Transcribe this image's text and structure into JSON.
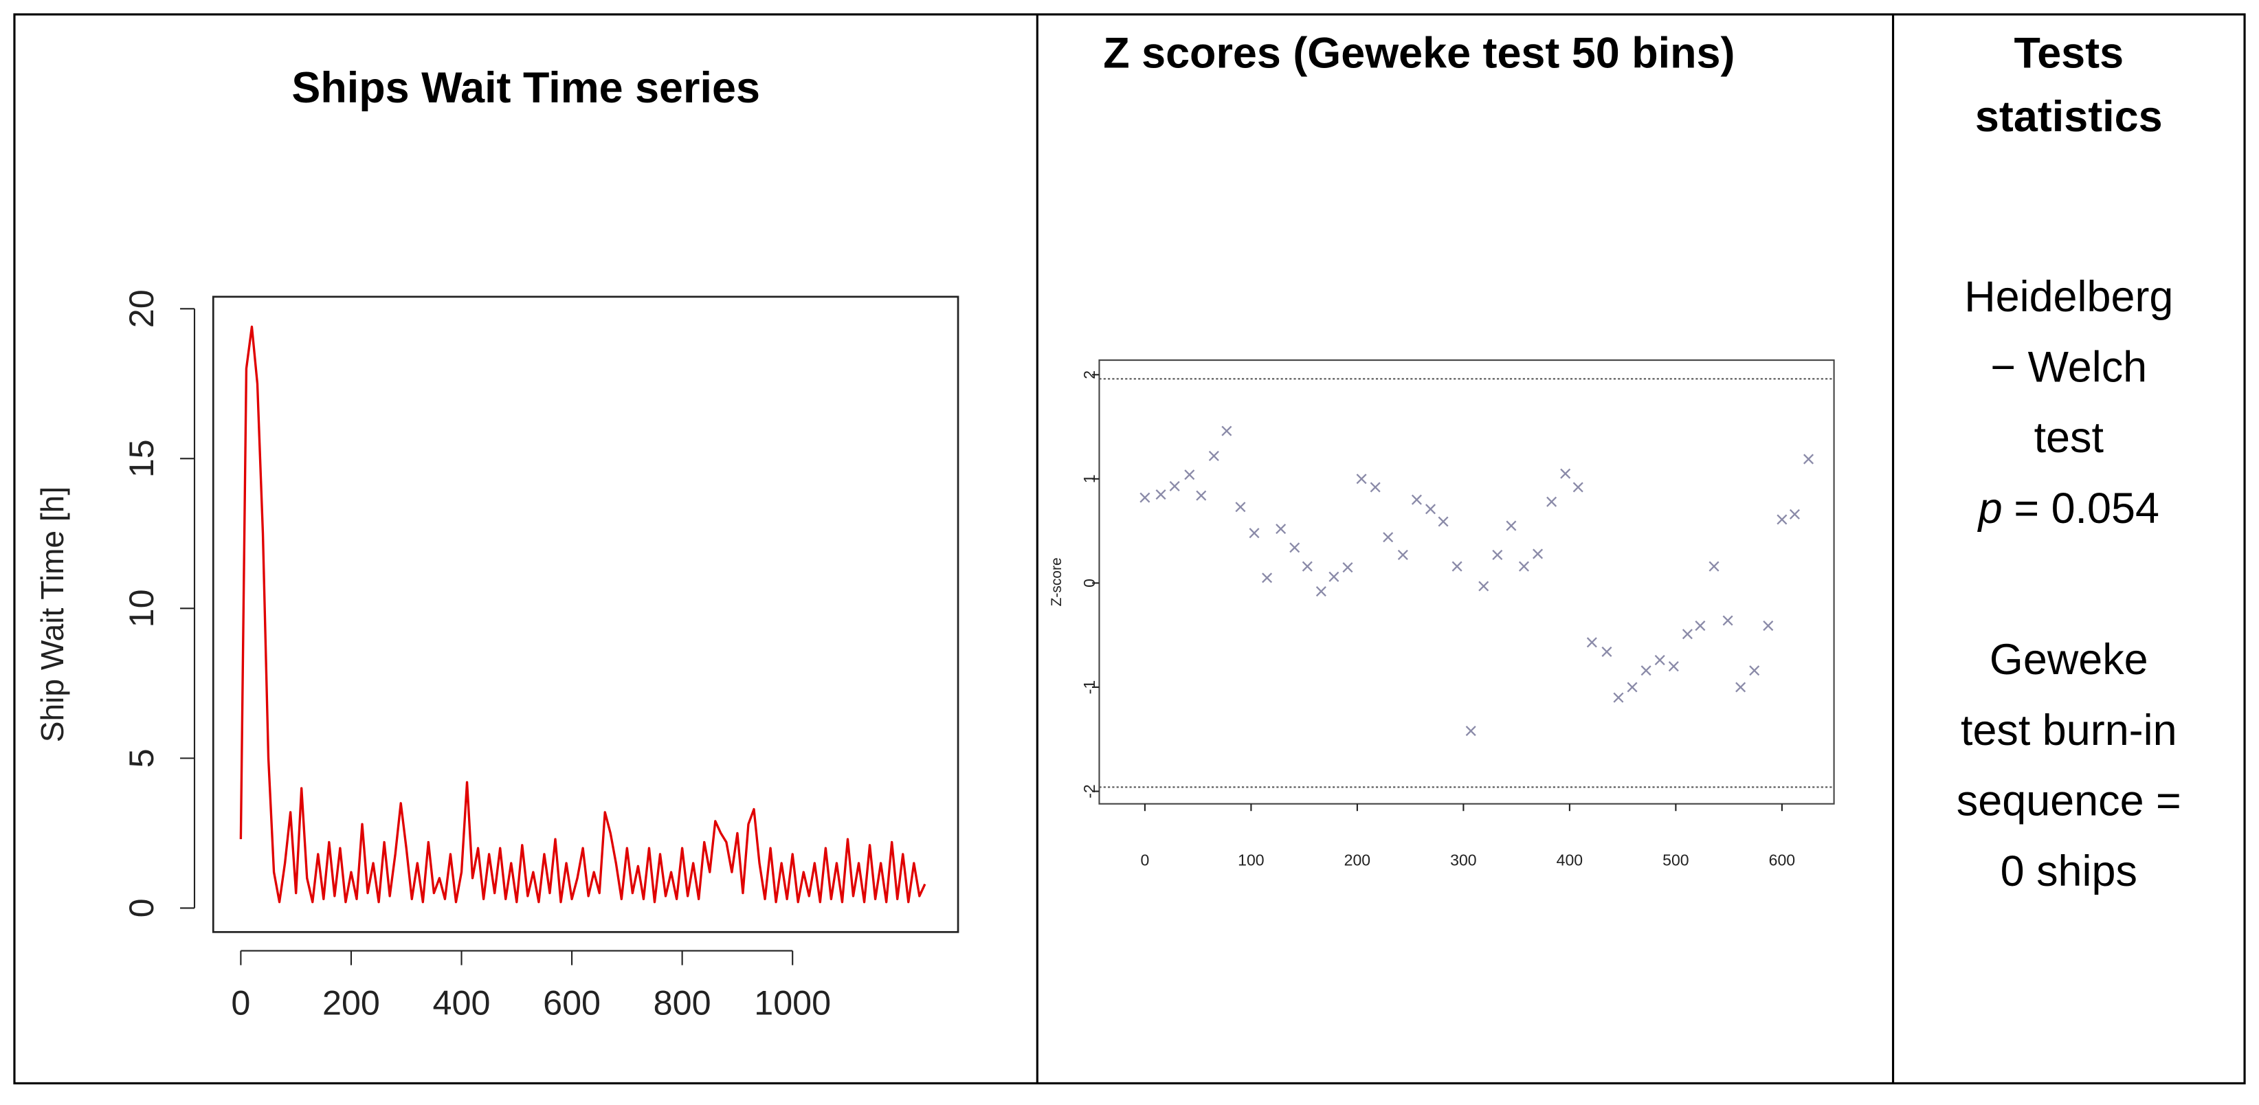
{
  "chart_data": [
    {
      "type": "line",
      "title": "Ships Wait Time series",
      "ylabel": "Ship Wait Time [h]",
      "x": [
        0,
        10,
        20,
        30,
        40,
        50,
        60,
        70,
        80,
        90,
        100,
        110,
        120,
        130,
        140,
        150,
        160,
        170,
        180,
        190,
        200,
        210,
        220,
        230,
        240,
        250,
        260,
        270,
        280,
        290,
        300,
        310,
        320,
        330,
        340,
        350,
        360,
        370,
        380,
        390,
        400,
        410,
        420,
        430,
        440,
        450,
        460,
        470,
        480,
        490,
        500,
        510,
        520,
        530,
        540,
        550,
        560,
        570,
        580,
        590,
        600,
        610,
        620,
        630,
        640,
        650,
        660,
        670,
        680,
        690,
        700,
        710,
        720,
        730,
        740,
        750,
        760,
        770,
        780,
        790,
        800,
        810,
        820,
        830,
        840,
        850,
        860,
        870,
        880,
        890,
        900,
        910,
        920,
        930,
        940,
        950,
        960,
        970,
        980,
        990,
        1000,
        1010,
        1020,
        1030,
        1040,
        1050,
        1060,
        1070,
        1080,
        1090,
        1100,
        1110,
        1120,
        1130,
        1140,
        1150,
        1160,
        1170,
        1180,
        1190,
        1200,
        1210,
        1220,
        1230,
        1240
      ],
      "series": [
        {
          "color": "#e00000",
          "values": [
            2.3,
            18,
            19.4,
            17.5,
            12.5,
            5,
            1.2,
            0.2,
            1.5,
            3.2,
            0.5,
            4,
            1,
            0.2,
            1.8,
            0.3,
            2.2,
            0.4,
            2,
            0.2,
            1.2,
            0.3,
            2.8,
            0.5,
            1.5,
            0.2,
            2.2,
            0.4,
            1.8,
            3.5,
            2,
            0.3,
            1.5,
            0.2,
            2.2,
            0.5,
            1,
            0.3,
            1.8,
            0.2,
            1.2,
            4.2,
            1,
            2,
            0.3,
            1.8,
            0.5,
            2,
            0.3,
            1.5,
            0.2,
            2.1,
            0.4,
            1.2,
            0.2,
            1.8,
            0.5,
            2.3,
            0.2,
            1.5,
            0.3,
            1,
            2,
            0.4,
            1.2,
            0.5,
            3.2,
            2.5,
            1.5,
            0.3,
            2,
            0.5,
            1.4,
            0.3,
            2,
            0.2,
            1.8,
            0.4,
            1.2,
            0.3,
            2,
            0.4,
            1.5,
            0.3,
            2.2,
            1.2,
            2.9,
            2.5,
            2.2,
            1.2,
            2.5,
            0.5,
            2.8,
            3.3,
            1.5,
            0.3,
            2,
            0.2,
            1.5,
            0.3,
            1.8,
            0.2,
            1.2,
            0.4,
            1.5,
            0.2,
            2,
            0.3,
            1.5,
            0.2,
            2.3,
            0.4,
            1.5,
            0.2,
            2.1,
            0.3,
            1.5,
            0.2,
            2.2,
            0.3,
            1.8,
            0.2,
            1.5,
            0.4,
            0.8
          ]
        }
      ],
      "xlim": [
        -50,
        1300
      ],
      "xticks": [
        0,
        200,
        400,
        600,
        800,
        1000
      ],
      "ylim": [
        -0.8,
        20.4
      ],
      "yticks": [
        0,
        5,
        10,
        15,
        20
      ]
    },
    {
      "type": "scatter",
      "title": "Z scores (Geweke test 50 bins)",
      "ylabel": "Z-score",
      "marker": "x",
      "x": [
        0,
        15,
        28,
        42,
        53,
        65,
        77,
        90,
        103,
        115,
        128,
        141,
        153,
        166,
        178,
        191,
        204,
        217,
        229,
        243,
        256,
        269,
        281,
        294,
        307,
        319,
        332,
        345,
        357,
        370,
        383,
        396,
        408,
        421,
        435,
        446,
        459,
        472,
        485,
        498,
        511,
        523,
        536,
        549,
        561,
        574,
        587,
        600,
        612,
        625
      ],
      "series": [
        {
          "color": "#8a8aa8",
          "values": [
            0.82,
            0.85,
            0.93,
            1.04,
            0.84,
            1.22,
            1.46,
            0.73,
            0.48,
            0.05,
            0.52,
            0.34,
            0.16,
            -0.08,
            0.06,
            0.15,
            1.0,
            0.92,
            0.44,
            0.27,
            0.8,
            0.71,
            0.59,
            0.16,
            -1.42,
            -0.03,
            0.27,
            0.55,
            0.16,
            0.28,
            0.78,
            1.05,
            0.92,
            -0.57,
            -0.66,
            -1.1,
            -1.0,
            -0.84,
            -0.74,
            -0.8,
            -0.49,
            -0.41,
            0.16,
            -0.36,
            -1.0,
            -0.84,
            -0.41,
            0.61,
            0.66,
            1.19
          ]
        }
      ],
      "reference_lines": [
        -1.96,
        1.96
      ],
      "xlim": [
        -43,
        649
      ],
      "xticks": [
        0,
        100,
        200,
        300,
        400,
        500,
        600
      ],
      "ylim": [
        -2.12,
        2.14
      ],
      "yticks": [
        -2,
        -1,
        0,
        1,
        2
      ]
    }
  ],
  "tests_statistics": {
    "title": "Tests statistics",
    "heidelberg_welch": {
      "lines": [
        "Heidelberg",
        "− Welch",
        "test"
      ],
      "stat_symbol": "p",
      "stat_text": "= 0.054"
    },
    "geweke": {
      "lines": [
        "Geweke",
        "test burn-in",
        "sequence =",
        "0 ships"
      ]
    }
  }
}
